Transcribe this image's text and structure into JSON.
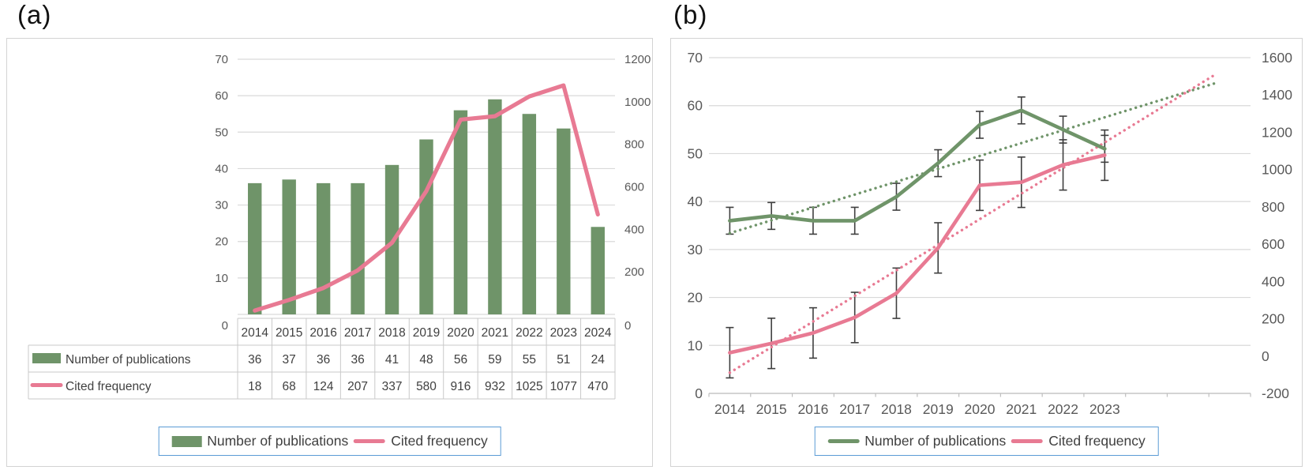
{
  "figure": {
    "panels": [
      {
        "label": "(a)"
      },
      {
        "label": "(b)"
      }
    ]
  },
  "colors": {
    "publications_green": "#6f9469",
    "cited_pink": "#e87a93",
    "gridline": "#d9d9d9",
    "axis_text": "#595959",
    "table_text": "#404040",
    "error_bar": "#3f3f3f",
    "legend_border": "#5b9bd5",
    "panel_border": "#d3d3d3",
    "axis_line": "#bfbfbf",
    "table_border": "#c9c9c9"
  },
  "chart_data": [
    {
      "id": "a",
      "type": "bar",
      "subtype": "combo-bar-line-dual-axis",
      "categories": [
        "2014",
        "2015",
        "2016",
        "2017",
        "2018",
        "2019",
        "2020",
        "2021",
        "2022",
        "2023",
        "2024"
      ],
      "series": [
        {
          "name": "Number of publications",
          "type": "bar",
          "axis": "left",
          "color_key": "publications_green",
          "values": [
            36,
            37,
            36,
            36,
            41,
            48,
            56,
            59,
            55,
            51,
            24
          ]
        },
        {
          "name": "Cited frequency",
          "type": "line",
          "axis": "right",
          "color_key": "cited_pink",
          "values": [
            18,
            68,
            124,
            207,
            337,
            580,
            916,
            932,
            1025,
            1077,
            470
          ]
        }
      ],
      "left_axis": {
        "min": 0,
        "max": 70,
        "ticks": [
          0,
          10,
          20,
          30,
          40,
          50,
          60,
          70
        ]
      },
      "right_axis": {
        "min": 0,
        "max": 1200,
        "ticks": [
          0,
          200,
          400,
          600,
          800,
          1000,
          1200
        ]
      },
      "grid": true,
      "data_table_shown": true,
      "legend_position": "bottom"
    },
    {
      "id": "b",
      "type": "line",
      "subtype": "line-error-bars-dotted-trendlines-dual-axis",
      "categories": [
        "2014",
        "2015",
        "2016",
        "2017",
        "2018",
        "2019",
        "2020",
        "2021",
        "2022",
        "2023"
      ],
      "series": [
        {
          "name": "Number of publications",
          "type": "line",
          "axis": "left",
          "color_key": "publications_green",
          "values": [
            36,
            37,
            36,
            36,
            41,
            48,
            56,
            59,
            55,
            51
          ],
          "error_bar": 2.8,
          "trendline": {
            "style": "dotted",
            "y_start": 33.4,
            "y_end": 64.8,
            "x_end_category_index": 11.7
          }
        },
        {
          "name": "Cited frequency",
          "type": "line",
          "axis": "right",
          "color_key": "cited_pink",
          "values": [
            18,
            68,
            124,
            207,
            337,
            580,
            916,
            932,
            1025,
            1077
          ],
          "error_bar": 135,
          "trendline": {
            "style": "dotted",
            "y_start": -89,
            "y_end": 1516,
            "x_end_category_index": 11.7
          }
        }
      ],
      "left_axis": {
        "min": 0,
        "max": 70,
        "ticks": [
          0,
          10,
          20,
          30,
          40,
          50,
          60,
          70
        ]
      },
      "right_axis": {
        "min": -200,
        "max": 1600,
        "ticks": [
          -200,
          0,
          200,
          400,
          600,
          800,
          1000,
          1200,
          1400,
          1600
        ]
      },
      "x_slots": 13,
      "grid": true,
      "legend_position": "bottom"
    }
  ]
}
